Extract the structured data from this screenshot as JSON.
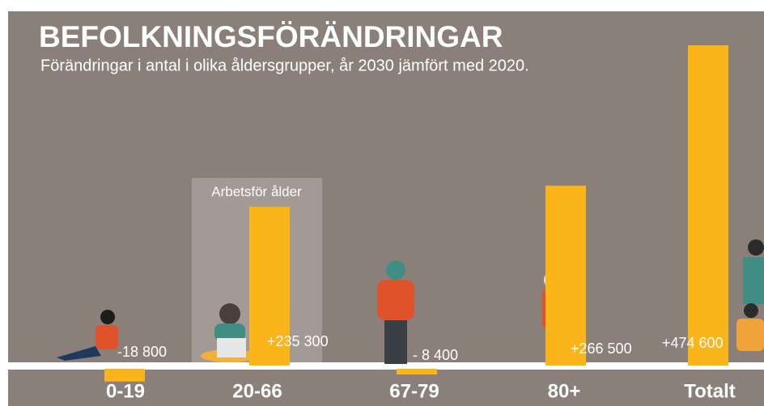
{
  "chart_data": {
    "type": "bar",
    "title": "BEFOLKNINGSFÖRÄNDRINGAR",
    "subtitle": "Förändringar i antal i olika åldersgrupper, år 2030 jämfört med 2020.",
    "annotation": "Arbetsför ålder",
    "categories": [
      "0-19",
      "20-66",
      "67-79",
      "80+",
      "Totalt"
    ],
    "values": [
      -18800,
      235300,
      -8400,
      266500,
      474600
    ],
    "value_labels": [
      "-18 800",
      "+235 300",
      "- 8 400",
      "+266 500",
      "+474 600"
    ],
    "color": "#fbb41a"
  }
}
